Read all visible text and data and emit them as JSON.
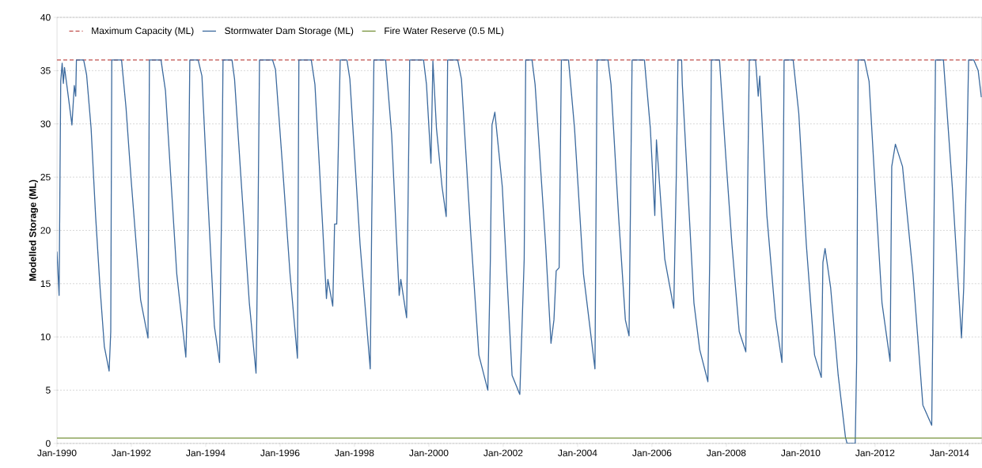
{
  "chart_data": {
    "type": "line",
    "ylabel": "Modelled Storage (ML)",
    "x": [
      "1990-01-01",
      "1990-01-22",
      "1990-02-07",
      "1990-02-21",
      "1990-03-05",
      "1990-03-16",
      "1990-04-11",
      "1990-05-28",
      "1990-06-20",
      "1990-07-04",
      "1990-07-11",
      "1990-09-20",
      "1990-10-19",
      "1990-12-02",
      "1991-01-15",
      "1991-02-28",
      "1991-04-11",
      "1991-05-28",
      "1991-06-13",
      "1991-06-23",
      "1991-09-27",
      "1991-11-10",
      "1991-12-16",
      "1992-01-01",
      "1992-02-07",
      "1992-04-01",
      "1992-06-13",
      "1992-06-27",
      "1992-10-19",
      "1992-12-02",
      "1993-01-29",
      "1993-03-23",
      "1993-06-20",
      "1993-07-04",
      "1993-07-15",
      "1993-07-29",
      "1993-10-19",
      "1993-11-25",
      "1994-01-01",
      "1994-03-27",
      "1994-05-17",
      "1994-06-05",
      "1994-06-20",
      "1994-09-16",
      "1994-10-11",
      "1994-12-09",
      "1995-03-05",
      "1995-05-10",
      "1995-05-28",
      "1995-06-13",
      "1995-10-19",
      "1995-11-17",
      "1996-01-29",
      "1996-04-08",
      "1996-06-20",
      "1996-07-04",
      "1996-11-03",
      "1996-12-09",
      "1997-02-17",
      "1997-04-01",
      "1997-04-15",
      "1997-06-02",
      "1997-06-20",
      "1997-07-11",
      "1997-08-14",
      "1997-10-19",
      "1997-11-17",
      "1998-02-25",
      "1998-06-05",
      "1998-06-20",
      "1998-07-11",
      "1998-11-03",
      "1999-01-01",
      "1999-02-14",
      "1999-03-16",
      "1999-04-01",
      "1999-05-28",
      "1999-06-20",
      "1999-06-27",
      "1999-11-10",
      "1999-12-09",
      "2000-01-22",
      "2000-02-10",
      "2000-03-16",
      "2000-05-10",
      "2000-06-20",
      "2000-07-04",
      "2000-10-11",
      "2000-11-17",
      "2001-02-14",
      "2001-05-07",
      "2001-08-03",
      "2001-08-28",
      "2001-09-13",
      "2001-10-11",
      "2001-12-23",
      "2002-03-29",
      "2002-06-13",
      "2002-07-26",
      "2002-08-10",
      "2002-10-11",
      "2002-11-10",
      "2003-02-21",
      "2003-04-15",
      "2003-05-14",
      "2003-06-05",
      "2003-07-04",
      "2003-07-26",
      "2003-10-04",
      "2003-12-02",
      "2004-02-28",
      "2004-06-20",
      "2004-07-11",
      "2004-10-26",
      "2004-11-25",
      "2005-02-07",
      "2005-04-15",
      "2005-05-21",
      "2005-06-20",
      "2005-10-19",
      "2005-12-16",
      "2006-01-29",
      "2006-02-14",
      "2006-05-07",
      "2006-08-03",
      "2006-08-28",
      "2006-09-13",
      "2006-10-19",
      "2006-10-26",
      "2007-02-17",
      "2007-04-15",
      "2007-07-04",
      "2007-07-22",
      "2007-08-07",
      "2007-10-26",
      "2007-12-27",
      "2008-02-25",
      "2008-05-07",
      "2008-07-11",
      "2008-07-29",
      "2008-08-14",
      "2008-10-15",
      "2008-11-10",
      "2008-11-25",
      "2009-02-03",
      "2009-04-29",
      "2009-07-01",
      "2009-07-22",
      "2009-10-19",
      "2009-12-13",
      "2010-02-25",
      "2010-05-17",
      "2010-07-22",
      "2010-08-07",
      "2010-08-28",
      "2010-10-22",
      "2011-01-04",
      "2011-03-16",
      "2011-04-01",
      "2011-06-20",
      "2011-07-04",
      "2011-07-19",
      "2011-09-20",
      "2011-11-03",
      "2012-01-01",
      "2012-03-09",
      "2012-05-28",
      "2012-06-13",
      "2012-07-19",
      "2012-09-27",
      "2013-01-08",
      "2013-04-15",
      "2013-07-11",
      "2013-08-03",
      "2013-08-17",
      "2013-11-03",
      "2014-01-29",
      "2014-04-29",
      "2014-05-21",
      "2014-06-20",
      "2014-07-08",
      "2014-08-28",
      "2014-10-10",
      "2014-11-10"
    ],
    "series": [
      {
        "name": "Stormwater Dam Storage (ML)",
        "color": "#3c6a9e",
        "values": [
          18.0,
          13.9,
          34.0,
          35.7,
          33.8,
          35.3,
          33.4,
          29.9,
          33.6,
          32.6,
          36.0,
          36.0,
          34.6,
          29.6,
          21.4,
          14.6,
          9.1,
          6.8,
          10.5,
          36.0,
          36.0,
          31.5,
          26.6,
          24.5,
          20.0,
          13.5,
          9.9,
          36.0,
          36.0,
          33.1,
          24.1,
          15.9,
          8.1,
          13.2,
          22.8,
          36.0,
          36.0,
          34.5,
          27.0,
          11.0,
          7.6,
          21.4,
          36.0,
          36.0,
          34.2,
          25.5,
          13.2,
          6.6,
          19.5,
          36.0,
          36.0,
          35.1,
          25.5,
          15.9,
          8.0,
          36.0,
          36.0,
          33.7,
          21.4,
          13.6,
          15.4,
          12.9,
          20.6,
          20.6,
          36.0,
          36.0,
          34.2,
          18.7,
          7.0,
          21.4,
          36.0,
          36.0,
          29.0,
          20.0,
          13.9,
          15.4,
          11.8,
          29.6,
          36.0,
          36.0,
          33.7,
          26.3,
          35.9,
          29.6,
          24.1,
          21.3,
          36.0,
          36.0,
          34.2,
          20.0,
          8.3,
          5.0,
          17.3,
          29.9,
          31.1,
          24.1,
          6.4,
          4.6,
          17.3,
          36.0,
          36.0,
          33.7,
          18.7,
          9.4,
          11.6,
          16.2,
          16.5,
          36.0,
          36.0,
          29.6,
          15.9,
          7.0,
          36.0,
          36.0,
          33.7,
          21.4,
          11.6,
          10.1,
          36.0,
          36.0,
          29.6,
          21.4,
          28.5,
          17.3,
          12.7,
          25.2,
          36.0,
          36.0,
          33.7,
          13.2,
          8.8,
          5.8,
          17.3,
          36.0,
          36.0,
          26.9,
          18.7,
          10.5,
          8.6,
          24.1,
          36.0,
          36.0,
          32.6,
          34.5,
          21.4,
          11.8,
          7.6,
          36.0,
          36.0,
          31.0,
          18.7,
          8.3,
          6.2,
          17.0,
          18.3,
          14.6,
          6.4,
          0.6,
          0.0,
          0.0,
          7.7,
          36.0,
          36.0,
          34.0,
          24.1,
          13.2,
          7.7,
          26.0,
          28.1,
          26.0,
          15.9,
          3.6,
          1.7,
          21.4,
          36.0,
          36.0,
          24.1,
          9.9,
          14.6,
          26.9,
          36.0,
          36.0,
          35.0,
          32.5
        ]
      }
    ],
    "ref_lines": [
      {
        "axis": "y",
        "value": 36,
        "label": "Maximum Capacity (ML)",
        "color": "#c0504d",
        "line_style": "dashed"
      },
      {
        "axis": "y",
        "value": 0.5,
        "label": "Fire Water Reserve (0.5 ML)",
        "color": "#77933c",
        "line_style": "solid"
      }
    ],
    "xlim": [
      "1990-01-01",
      "2014-11-15"
    ],
    "xticks": [
      {
        "value": "1990-01-01",
        "label": "Jan-1990"
      },
      {
        "value": "1992-01-01",
        "label": "Jan-1992"
      },
      {
        "value": "1994-01-01",
        "label": "Jan-1994"
      },
      {
        "value": "1996-01-01",
        "label": "Jan-1996"
      },
      {
        "value": "1998-01-01",
        "label": "Jan-1998"
      },
      {
        "value": "2000-01-01",
        "label": "Jan-2000"
      },
      {
        "value": "2002-01-01",
        "label": "Jan-2002"
      },
      {
        "value": "2004-01-01",
        "label": "Jan-2004"
      },
      {
        "value": "2006-01-01",
        "label": "Jan-2006"
      },
      {
        "value": "2008-01-01",
        "label": "Jan-2008"
      },
      {
        "value": "2010-01-01",
        "label": "Jan-2010"
      },
      {
        "value": "2012-01-01",
        "label": "Jan-2012"
      },
      {
        "value": "2014-01-01",
        "label": "Jan-2014"
      }
    ],
    "ylim": [
      0,
      40
    ],
    "yticks": [
      0,
      5,
      10,
      15,
      20,
      25,
      30,
      35,
      40
    ],
    "grid": "y",
    "legend": "top left",
    "marker": "none",
    "line_style": "solid"
  }
}
